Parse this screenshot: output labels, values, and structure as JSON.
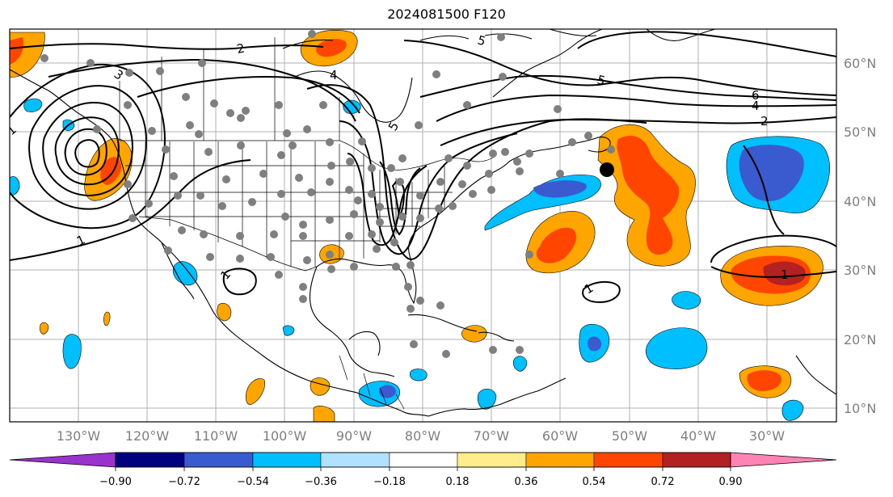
{
  "title": "2024081500 F120",
  "colors": {
    "dark_purple": "#9a32cd",
    "navy": "#000080",
    "royal_blue": "#3a5bd0",
    "deep_sky": "#00bfff",
    "light_sky": "#b0e2ff",
    "neutral": "#ffffff",
    "light_yellow": "#ffec8b",
    "orange": "#ffa500",
    "orange_red": "#ff4500",
    "firebrick": "#b22222",
    "pink": "#ff83b5",
    "station_gray": "#7f7f7f",
    "grid_gray": "#b0b0b0"
  },
  "lat_labels": [
    "60°N",
    "50°N",
    "40°N",
    "30°N",
    "20°N",
    "10°N"
  ],
  "lon_labels": [
    "130°W",
    "120°W",
    "110°W",
    "100°W",
    "90°W",
    "80°W",
    "70°W",
    "60°W",
    "50°W",
    "40°W",
    "30°W"
  ],
  "colorbar": {
    "ticks": [
      "−0.90",
      "−0.72",
      "−0.54",
      "−0.36",
      "−0.18",
      "0.18",
      "0.36",
      "0.54",
      "0.72",
      "0.90"
    ],
    "bins": [
      "dark_purple",
      "navy",
      "royal_blue",
      "deep_sky",
      "light_sky",
      "neutral",
      "light_yellow",
      "orange",
      "orange_red",
      "firebrick",
      "pink"
    ]
  },
  "contour_labels": [
    "1",
    "2",
    "3",
    "4",
    "5",
    "6"
  ],
  "marker": {
    "lon": -54,
    "lat": 44.5
  }
}
